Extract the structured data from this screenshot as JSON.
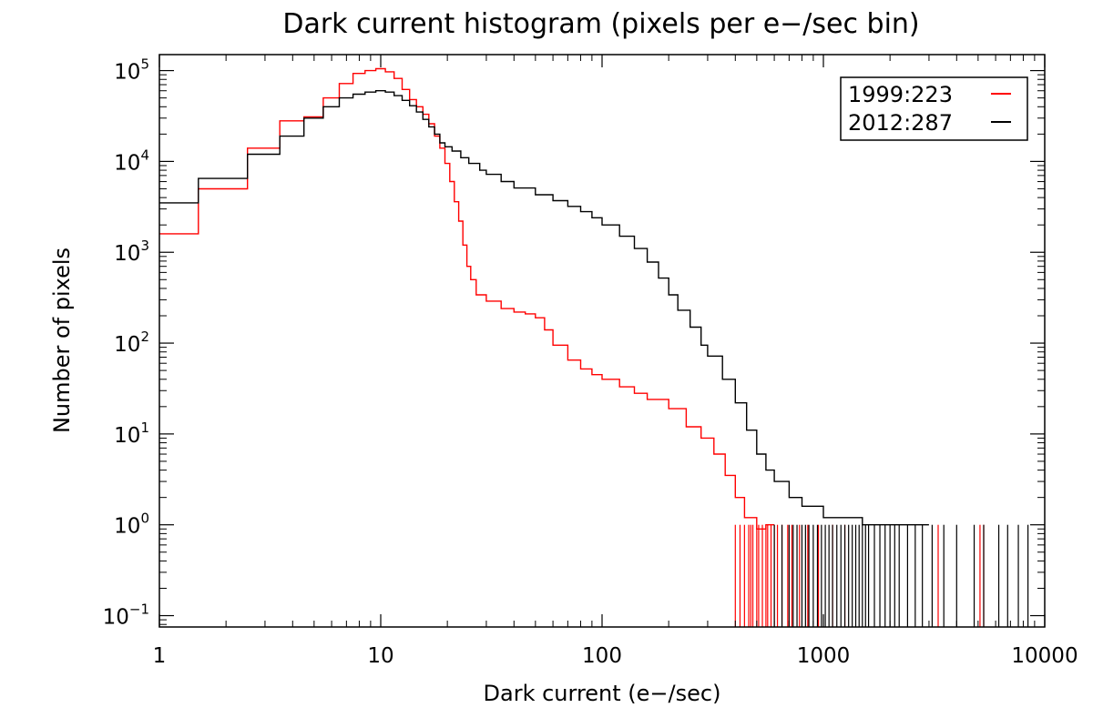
{
  "chart_data": {
    "type": "line",
    "title": "Dark current histogram (pixels per e−/sec bin)",
    "xlabel": "Dark current (e−/sec)",
    "ylabel": "Number of pixels",
    "x_scale": "log",
    "y_scale": "log",
    "xlim": [
      1,
      10000
    ],
    "ylim": [
      0.075,
      150000
    ],
    "x_ticks": [
      {
        "value": 1,
        "label": "1"
      },
      {
        "value": 10,
        "label": "10"
      },
      {
        "value": 100,
        "label": "100"
      },
      {
        "value": 1000,
        "label": "1000"
      },
      {
        "value": 10000,
        "label": "10000"
      }
    ],
    "y_ticks": [
      {
        "value": 0.1,
        "base": "10",
        "exp": "−1"
      },
      {
        "value": 1,
        "base": "10",
        "exp": "0"
      },
      {
        "value": 10,
        "base": "10",
        "exp": "1"
      },
      {
        "value": 100,
        "base": "10",
        "exp": "2"
      },
      {
        "value": 1000,
        "base": "10",
        "exp": "3"
      },
      {
        "value": 10000,
        "base": "10",
        "exp": "4"
      },
      {
        "value": 100000,
        "base": "10",
        "exp": "5"
      }
    ],
    "grid": false,
    "legend_position": "top-right",
    "series": [
      {
        "name": "1999:223",
        "color": "#ff0000",
        "step": true,
        "points": [
          [
            1.0,
            1600
          ],
          [
            1.5,
            5000
          ],
          [
            2.5,
            14000
          ],
          [
            3.5,
            28000
          ],
          [
            4.5,
            31000
          ],
          [
            5.5,
            50000
          ],
          [
            6.5,
            72000
          ],
          [
            7.5,
            93000
          ],
          [
            8.5,
            100000
          ],
          [
            9.5,
            105000
          ],
          [
            10.5,
            97000
          ],
          [
            11.5,
            82000
          ],
          [
            12.5,
            62000
          ],
          [
            13.5,
            48000
          ],
          [
            14.5,
            40000
          ],
          [
            15.5,
            33000
          ],
          [
            16.5,
            26000
          ],
          [
            17.5,
            19000
          ],
          [
            18.5,
            14000
          ],
          [
            19.5,
            9500
          ],
          [
            20.5,
            6000
          ],
          [
            21.5,
            3600
          ],
          [
            22.5,
            2200
          ],
          [
            23.5,
            1200
          ],
          [
            24.5,
            700
          ],
          [
            25.5,
            500
          ],
          [
            27,
            340
          ],
          [
            30,
            290
          ],
          [
            35,
            240
          ],
          [
            40,
            220
          ],
          [
            45,
            210
          ],
          [
            50,
            190
          ],
          [
            55,
            140
          ],
          [
            60,
            95
          ],
          [
            70,
            65
          ],
          [
            80,
            52
          ],
          [
            90,
            45
          ],
          [
            100,
            40
          ],
          [
            120,
            33
          ],
          [
            140,
            28
          ],
          [
            160,
            24
          ],
          [
            200,
            19
          ],
          [
            240,
            12
          ],
          [
            280,
            9
          ],
          [
            320,
            6
          ],
          [
            360,
            3.5
          ],
          [
            400,
            2
          ],
          [
            440,
            1.2
          ],
          [
            500,
            0.9
          ],
          [
            550,
            1
          ],
          [
            600,
            1
          ]
        ],
        "spikes": [
          400,
          420,
          440,
          460,
          470,
          480,
          500,
          510,
          530,
          550,
          560,
          580,
          600,
          620,
          650,
          690,
          720,
          780,
          850,
          950,
          1100,
          1250,
          3300,
          5100,
          5300
        ]
      },
      {
        "name": "2012:287",
        "color": "#000000",
        "step": true,
        "points": [
          [
            1.0,
            3500
          ],
          [
            1.5,
            6500
          ],
          [
            2.5,
            12000
          ],
          [
            3.5,
            19000
          ],
          [
            4.5,
            30000
          ],
          [
            5.5,
            40000
          ],
          [
            6.5,
            50000
          ],
          [
            7.5,
            55000
          ],
          [
            8.5,
            58000
          ],
          [
            9.5,
            60000
          ],
          [
            10.5,
            58000
          ],
          [
            11.5,
            53000
          ],
          [
            12.5,
            47000
          ],
          [
            13.5,
            41000
          ],
          [
            14.5,
            35000
          ],
          [
            15.5,
            29000
          ],
          [
            16.5,
            24000
          ],
          [
            17.5,
            20000
          ],
          [
            18.5,
            16000
          ],
          [
            19.5,
            14500
          ],
          [
            21,
            13000
          ],
          [
            23,
            11000
          ],
          [
            25,
            9500
          ],
          [
            28,
            8000
          ],
          [
            30,
            7200
          ],
          [
            35,
            6000
          ],
          [
            40,
            5100
          ],
          [
            50,
            4300
          ],
          [
            60,
            3700
          ],
          [
            70,
            3200
          ],
          [
            80,
            2800
          ],
          [
            90,
            2400
          ],
          [
            100,
            2000
          ],
          [
            120,
            1500
          ],
          [
            140,
            1100
          ],
          [
            160,
            780
          ],
          [
            180,
            520
          ],
          [
            200,
            340
          ],
          [
            220,
            230
          ],
          [
            250,
            150
          ],
          [
            280,
            95
          ],
          [
            300,
            72
          ],
          [
            350,
            40
          ],
          [
            400,
            22
          ],
          [
            450,
            11
          ],
          [
            500,
            6
          ],
          [
            550,
            4
          ],
          [
            600,
            3
          ],
          [
            700,
            2
          ],
          [
            800,
            1.6
          ],
          [
            1000,
            1.2
          ],
          [
            1500,
            1
          ],
          [
            2000,
            1
          ],
          [
            3000,
            1
          ]
        ],
        "spikes": [
          600,
          650,
          700,
          730,
          760,
          800,
          830,
          860,
          900,
          940,
          980,
          1020,
          1060,
          1100,
          1150,
          1200,
          1250,
          1300,
          1350,
          1400,
          1450,
          1500,
          1550,
          1600,
          1700,
          1800,
          1900,
          2000,
          2100,
          2200,
          2400,
          2600,
          2800,
          3100,
          3500,
          4000,
          4800,
          5300,
          6200,
          6800,
          7600,
          8400
        ]
      }
    ]
  }
}
